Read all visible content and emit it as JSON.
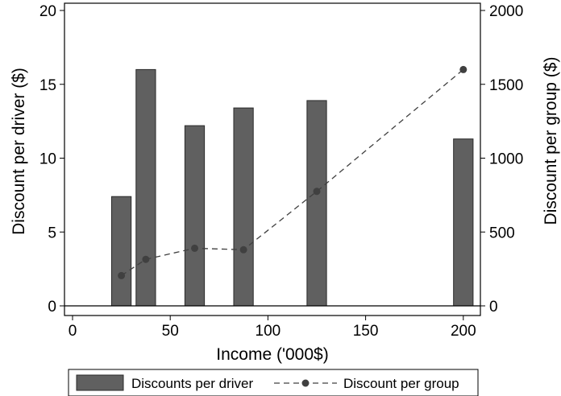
{
  "chart_data": {
    "type": "bar",
    "xlabel": "Income ('000$)",
    "ylabel_left": "Discount per driver ($)",
    "ylabel_right": "Discount per group ($)",
    "xlim": [
      -5,
      205
    ],
    "ylim_left": [
      0,
      20
    ],
    "ylim_right": [
      0,
      2000
    ],
    "x_ticks": [
      "0",
      "50",
      "100",
      "150",
      "200"
    ],
    "y_left_ticks": [
      "0",
      "5",
      "10",
      "15",
      "20"
    ],
    "y_right_ticks": [
      "0",
      "500",
      "1000",
      "1500",
      "2000"
    ],
    "bar_width": 10,
    "series": [
      {
        "name": "Discounts per driver",
        "kind": "bar",
        "axis": "left",
        "x": [
          25,
          37.5,
          62.5,
          87.5,
          125,
          200
        ],
        "values": [
          7.4,
          16.0,
          12.2,
          13.4,
          13.9,
          11.3
        ]
      },
      {
        "name": "Discount per group",
        "kind": "line",
        "axis": "right",
        "x": [
          25,
          37.5,
          62.5,
          87.5,
          125,
          200
        ],
        "values": [
          205,
          315,
          390,
          380,
          775,
          1600
        ]
      }
    ],
    "legend_position": "bottom",
    "grid": false,
    "colors": {
      "bar": "#606060",
      "bar_stroke": "#2a2a2a",
      "line": "#404040",
      "point": "#404040"
    }
  }
}
